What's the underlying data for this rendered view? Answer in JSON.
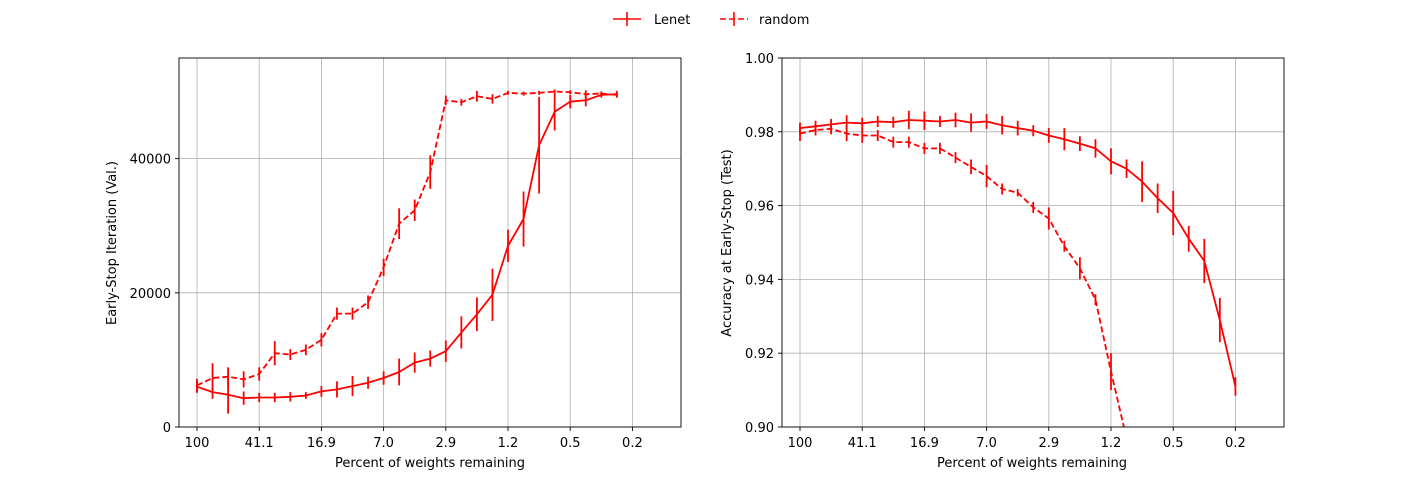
{
  "legend": {
    "placement": "top-center"
  },
  "chart_data": [
    {
      "type": "line",
      "xlabel": "Percent of weights remaining",
      "ylabel": "Early-Stop Iteration (Val.)",
      "xticks": [
        "100",
        "41.1",
        "16.9",
        "7.0",
        "2.9",
        "1.2",
        "0.5",
        "0.2"
      ],
      "ylim": [
        0,
        55000
      ],
      "yticks": [
        0,
        20000,
        40000
      ],
      "grid": true,
      "series": [
        {
          "name": "Lenet",
          "color": "#ff0000",
          "style": "solid",
          "values": [
            6000,
            5200,
            4800,
            4300,
            4400,
            4400,
            4500,
            4700,
            5300,
            5600,
            6100,
            6600,
            7300,
            8200,
            9600,
            10200,
            11300,
            14100,
            16800,
            19700,
            27000,
            31000,
            42000,
            47000,
            48500,
            48700,
            49500,
            49600
          ],
          "errors": [
            900,
            1000,
            2800,
            1000,
            700,
            700,
            700,
            500,
            800,
            1200,
            1500,
            900,
            1000,
            2000,
            1500,
            1200,
            1600,
            2400,
            2500,
            3900,
            2400,
            4100,
            7200,
            2800,
            1000,
            900,
            400,
            500
          ]
        },
        {
          "name": "random",
          "color": "#ff0000",
          "style": "dashed",
          "values": [
            6200,
            7300,
            7500,
            7100,
            7900,
            11000,
            10800,
            11500,
            13000,
            16900,
            16900,
            18600,
            23800,
            30300,
            32300,
            38000,
            48700,
            48400,
            49300,
            48900,
            49800,
            49700,
            49800,
            50000,
            49900,
            49600,
            49700,
            49500
          ],
          "errors": [
            1000,
            2200,
            1400,
            1200,
            1000,
            1800,
            800,
            800,
            1000,
            900,
            900,
            1000,
            1300,
            2300,
            1600,
            2500,
            700,
            500,
            800,
            700,
            300,
            300,
            300,
            300,
            300,
            600,
            300,
            400
          ]
        }
      ]
    },
    {
      "type": "line",
      "xlabel": "Percent of weights remaining",
      "ylabel": "Accuracy at Early-Stop (Test)",
      "xticks": [
        "100",
        "41.1",
        "16.9",
        "7.0",
        "2.9",
        "1.2",
        "0.5",
        "0.2"
      ],
      "ylim": [
        0.9,
        1.0
      ],
      "yticks": [
        0.9,
        0.92,
        0.94,
        0.96,
        0.98,
        1.0
      ],
      "grid": true,
      "series": [
        {
          "name": "Lenet",
          "color": "#ff0000",
          "style": "solid",
          "values": [
            0.981,
            0.9815,
            0.982,
            0.9825,
            0.9823,
            0.9828,
            0.9826,
            0.9832,
            0.983,
            0.9828,
            0.9832,
            0.9825,
            0.9828,
            0.9818,
            0.981,
            0.9803,
            0.979,
            0.978,
            0.9768,
            0.9755,
            0.972,
            0.97,
            0.9665,
            0.962,
            0.958,
            0.951,
            0.945,
            0.929,
            0.911
          ],
          "errors": [
            0.0015,
            0.0015,
            0.0015,
            0.002,
            0.0015,
            0.0015,
            0.0015,
            0.0025,
            0.0025,
            0.0015,
            0.002,
            0.0025,
            0.002,
            0.0025,
            0.002,
            0.0015,
            0.002,
            0.003,
            0.002,
            0.0025,
            0.0035,
            0.0025,
            0.0055,
            0.004,
            0.006,
            0.0035,
            0.006,
            0.006,
            0.0025
          ]
        },
        {
          "name": "random",
          "color": "#ff0000",
          "style": "dashed",
          "values": [
            0.9795,
            0.9805,
            0.9808,
            0.9795,
            0.979,
            0.979,
            0.9772,
            0.9772,
            0.9755,
            0.9755,
            0.973,
            0.9705,
            0.968,
            0.9645,
            0.9635,
            0.9595,
            0.9565,
            0.949,
            0.943,
            0.9345,
            0.915,
            0.897
          ],
          "errors": [
            0.002,
            0.0015,
            0.0015,
            0.002,
            0.002,
            0.0015,
            0.0015,
            0.0015,
            0.0015,
            0.0015,
            0.0015,
            0.002,
            0.003,
            0.0015,
            0.001,
            0.0015,
            0.003,
            0.0015,
            0.003,
            0.0015,
            0.005,
            0.003
          ]
        }
      ]
    }
  ]
}
